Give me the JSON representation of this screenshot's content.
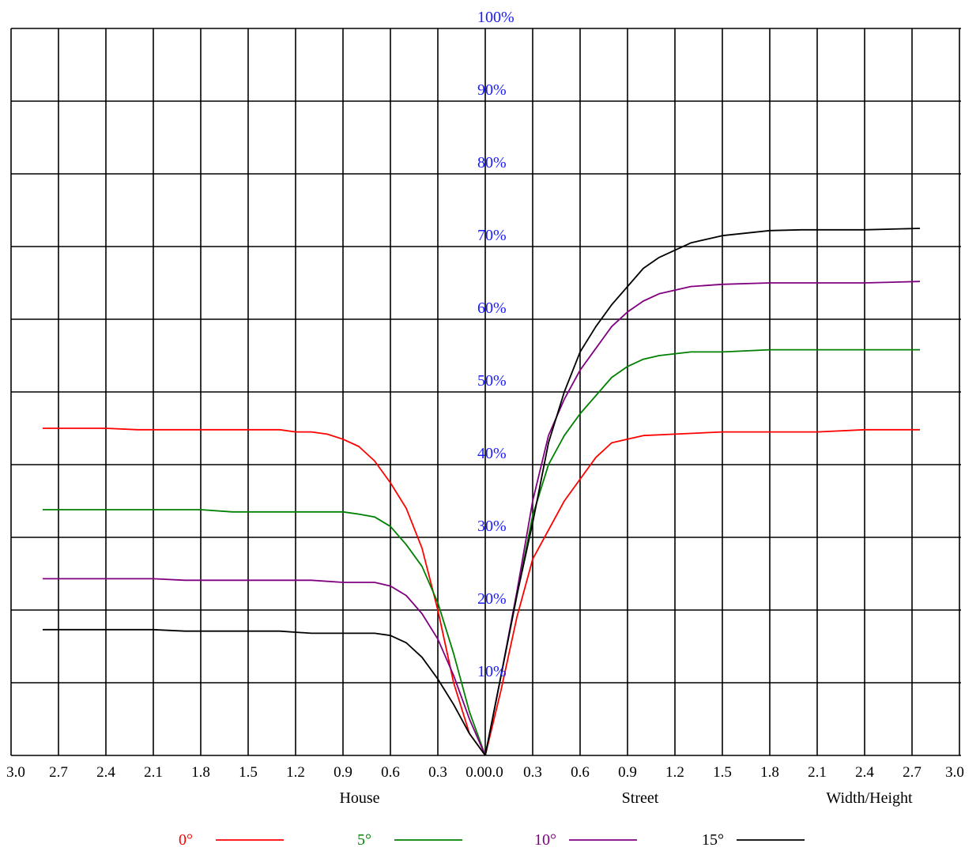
{
  "chart_data": {
    "type": "line",
    "title": "",
    "y_tick_labels": [
      "10%",
      "20%",
      "30%",
      "40%",
      "50%",
      "60%",
      "70%",
      "80%",
      "90%",
      "100%"
    ],
    "x_tick_labels": [
      "3.0",
      "2.7",
      "2.4",
      "2.1",
      "1.8",
      "1.5",
      "1.2",
      "0.9",
      "0.6",
      "0.3",
      "0.0",
      "0.0",
      "0.3",
      "0.6",
      "0.9",
      "1.2",
      "1.5",
      "1.8",
      "2.1",
      "2.4",
      "2.7",
      "3.0"
    ],
    "xlabels": {
      "house": "House",
      "street": "Street",
      "axis": "Width/Height"
    },
    "ylim": [
      0,
      100
    ],
    "xlim_house": [
      3.0,
      0.0
    ],
    "xlim_street": [
      0.0,
      3.0
    ],
    "grid": true,
    "legend_position": "bottom",
    "series": [
      {
        "name": "0°",
        "color": "#ff0000",
        "house": [
          [
            2.8,
            45
          ],
          [
            2.4,
            45
          ],
          [
            2.2,
            44.8
          ],
          [
            1.8,
            44.8
          ],
          [
            1.5,
            44.8
          ],
          [
            1.3,
            44.8
          ],
          [
            1.2,
            44.5
          ],
          [
            1.1,
            44.5
          ],
          [
            1.0,
            44.2
          ],
          [
            0.9,
            43.5
          ],
          [
            0.8,
            42.5
          ],
          [
            0.7,
            40.5
          ],
          [
            0.6,
            37.5
          ],
          [
            0.5,
            34
          ],
          [
            0.4,
            28.5
          ],
          [
            0.3,
            20
          ],
          [
            0.2,
            10
          ],
          [
            0.1,
            3
          ],
          [
            0.0,
            0
          ]
        ],
        "street": [
          [
            0.0,
            0
          ],
          [
            0.1,
            9
          ],
          [
            0.2,
            19
          ],
          [
            0.3,
            27
          ],
          [
            0.4,
            31
          ],
          [
            0.5,
            35
          ],
          [
            0.6,
            38
          ],
          [
            0.7,
            41
          ],
          [
            0.8,
            43
          ],
          [
            0.9,
            43.5
          ],
          [
            1.0,
            44
          ],
          [
            1.2,
            44.2
          ],
          [
            1.5,
            44.5
          ],
          [
            1.8,
            44.5
          ],
          [
            2.1,
            44.5
          ],
          [
            2.4,
            44.8
          ],
          [
            2.75,
            44.8
          ]
        ]
      },
      {
        "name": "5°",
        "color": "#008000",
        "house": [
          [
            2.8,
            33.8
          ],
          [
            2.4,
            33.8
          ],
          [
            2.1,
            33.8
          ],
          [
            1.8,
            33.8
          ],
          [
            1.6,
            33.5
          ],
          [
            1.4,
            33.5
          ],
          [
            1.1,
            33.5
          ],
          [
            0.9,
            33.5
          ],
          [
            0.8,
            33.2
          ],
          [
            0.7,
            32.8
          ],
          [
            0.6,
            31.5
          ],
          [
            0.5,
            29
          ],
          [
            0.4,
            26
          ],
          [
            0.3,
            21
          ],
          [
            0.2,
            14
          ],
          [
            0.1,
            6
          ],
          [
            0.0,
            0
          ]
        ],
        "street": [
          [
            0.0,
            0
          ],
          [
            0.1,
            11
          ],
          [
            0.2,
            22
          ],
          [
            0.3,
            33
          ],
          [
            0.4,
            40
          ],
          [
            0.5,
            44
          ],
          [
            0.6,
            47
          ],
          [
            0.7,
            49.5
          ],
          [
            0.8,
            52
          ],
          [
            0.9,
            53.5
          ],
          [
            1.0,
            54.5
          ],
          [
            1.1,
            55
          ],
          [
            1.3,
            55.5
          ],
          [
            1.5,
            55.5
          ],
          [
            1.8,
            55.8
          ],
          [
            2.1,
            55.8
          ],
          [
            2.4,
            55.8
          ],
          [
            2.75,
            55.8
          ]
        ]
      },
      {
        "name": "10°",
        "color": "#800080",
        "house": [
          [
            2.8,
            24.3
          ],
          [
            2.4,
            24.3
          ],
          [
            2.1,
            24.3
          ],
          [
            1.9,
            24.1
          ],
          [
            1.6,
            24.1
          ],
          [
            1.3,
            24.1
          ],
          [
            1.1,
            24.1
          ],
          [
            0.9,
            23.8
          ],
          [
            0.7,
            23.8
          ],
          [
            0.6,
            23.3
          ],
          [
            0.5,
            22
          ],
          [
            0.4,
            19.5
          ],
          [
            0.3,
            16
          ],
          [
            0.2,
            11
          ],
          [
            0.1,
            5
          ],
          [
            0.0,
            0
          ]
        ],
        "street": [
          [
            0.0,
            0
          ],
          [
            0.1,
            11
          ],
          [
            0.2,
            22.5
          ],
          [
            0.3,
            35
          ],
          [
            0.4,
            44
          ],
          [
            0.5,
            49
          ],
          [
            0.6,
            53
          ],
          [
            0.7,
            56
          ],
          [
            0.8,
            59
          ],
          [
            0.9,
            61
          ],
          [
            1.0,
            62.5
          ],
          [
            1.1,
            63.5
          ],
          [
            1.3,
            64.5
          ],
          [
            1.5,
            64.8
          ],
          [
            1.8,
            65
          ],
          [
            2.1,
            65
          ],
          [
            2.4,
            65
          ],
          [
            2.75,
            65.2
          ]
        ]
      },
      {
        "name": "15°",
        "color": "#000000",
        "house": [
          [
            2.8,
            17.3
          ],
          [
            2.4,
            17.3
          ],
          [
            2.1,
            17.3
          ],
          [
            1.9,
            17.1
          ],
          [
            1.6,
            17.1
          ],
          [
            1.3,
            17.1
          ],
          [
            1.1,
            16.8
          ],
          [
            0.9,
            16.8
          ],
          [
            0.7,
            16.8
          ],
          [
            0.6,
            16.5
          ],
          [
            0.5,
            15.5
          ],
          [
            0.4,
            13.5
          ],
          [
            0.3,
            10.5
          ],
          [
            0.2,
            7
          ],
          [
            0.1,
            3
          ],
          [
            0.0,
            0
          ]
        ],
        "street": [
          [
            0.0,
            0
          ],
          [
            0.1,
            11
          ],
          [
            0.2,
            22
          ],
          [
            0.3,
            32
          ],
          [
            0.4,
            43
          ],
          [
            0.5,
            50
          ],
          [
            0.6,
            55.5
          ],
          [
            0.7,
            59
          ],
          [
            0.8,
            62
          ],
          [
            0.9,
            64.5
          ],
          [
            1.0,
            67
          ],
          [
            1.1,
            68.5
          ],
          [
            1.3,
            70.5
          ],
          [
            1.5,
            71.5
          ],
          [
            1.8,
            72.2
          ],
          [
            2.0,
            72.3
          ],
          [
            2.4,
            72.3
          ],
          [
            2.75,
            72.5
          ]
        ]
      }
    ]
  }
}
